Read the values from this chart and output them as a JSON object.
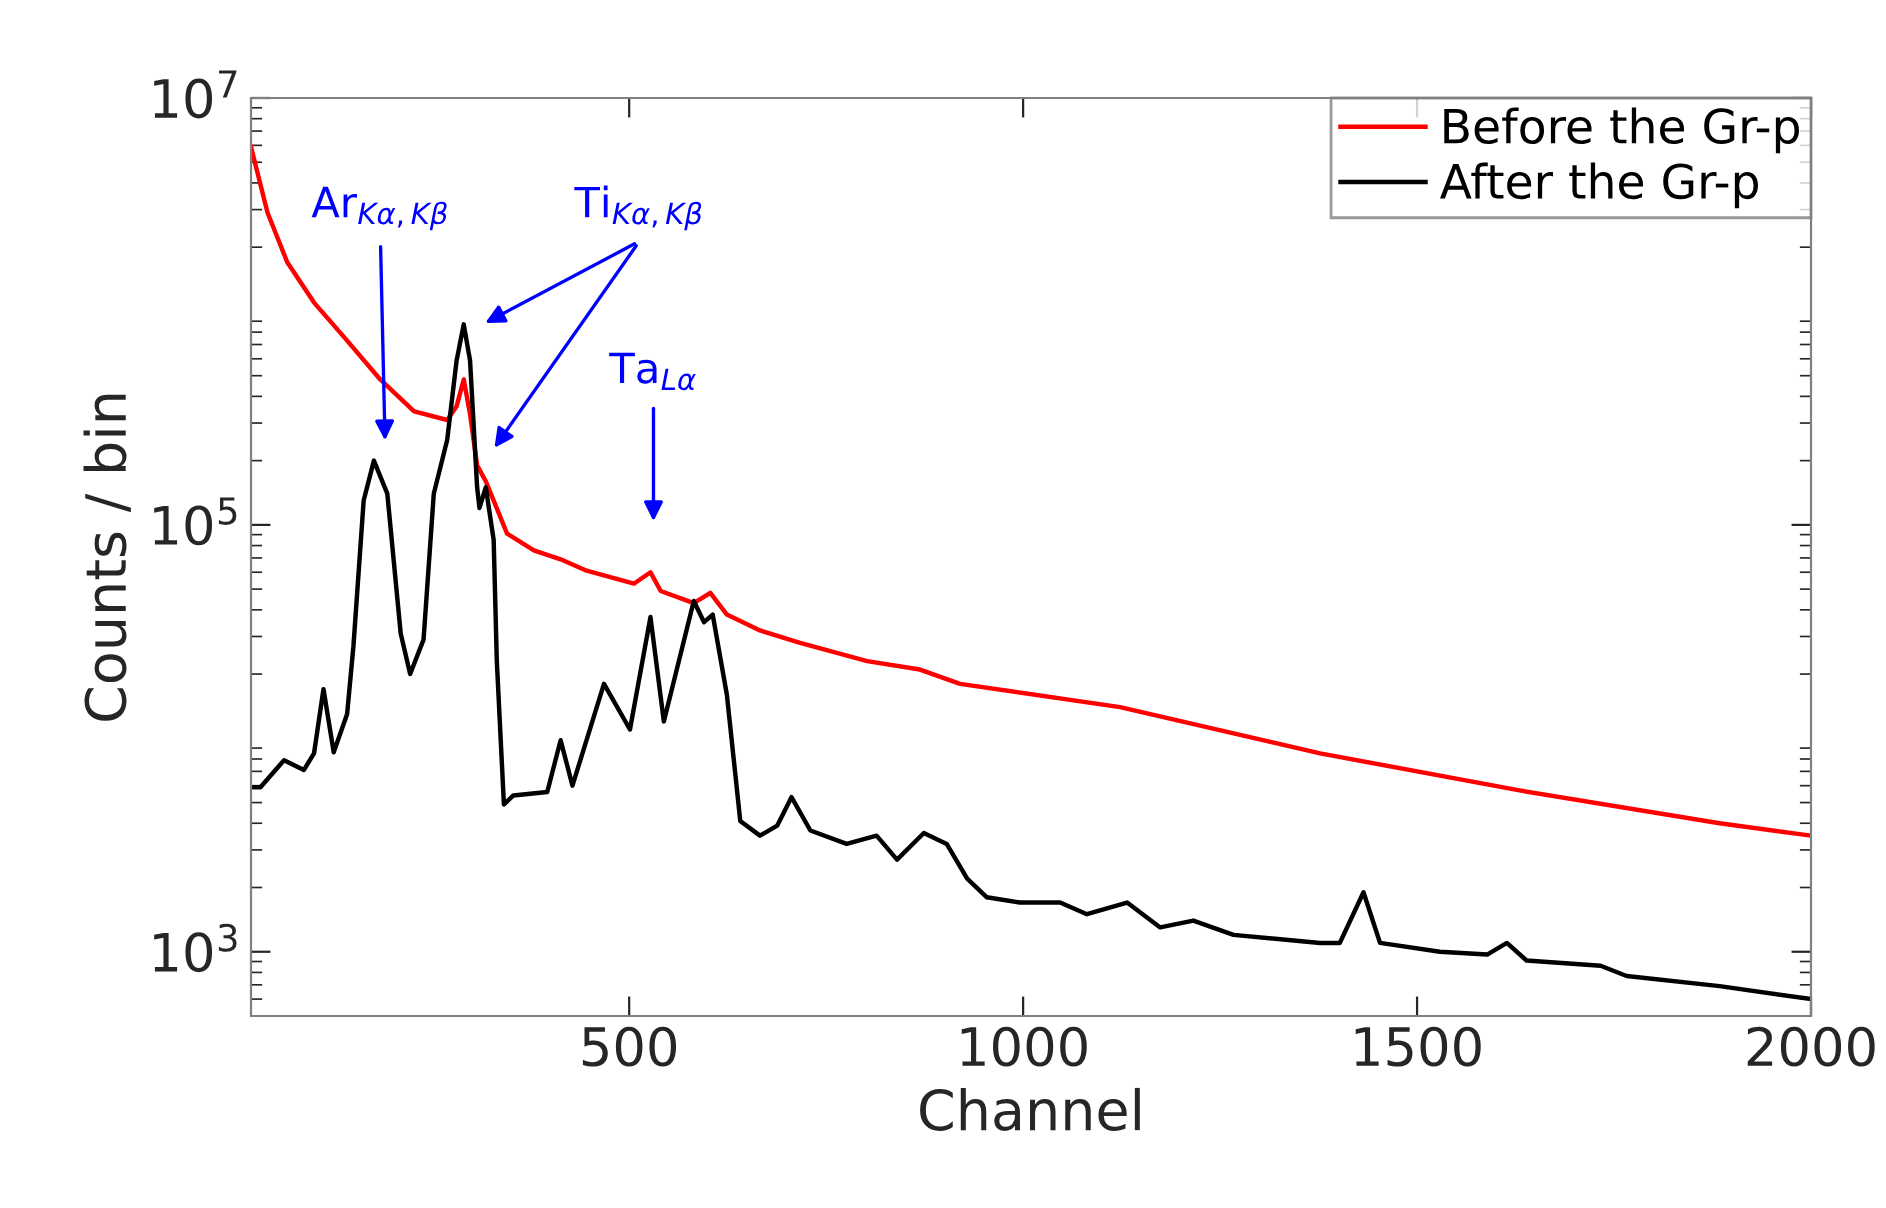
{
  "chart_data": {
    "type": "line",
    "xlabel": "Channel",
    "ylabel": "Counts / bin",
    "log": "y",
    "xlim": [
      20,
      2000
    ],
    "ylim": [
      500,
      10000000
    ],
    "xticks": [
      500,
      1000,
      1500,
      2000
    ],
    "yticks": [
      {
        "value": 1000,
        "label": "10$^{3}$"
      },
      {
        "value": 100000,
        "label": "10$^{5}$"
      },
      {
        "value": 10000000,
        "label": "10$^{7}$"
      }
    ],
    "grid": false,
    "legend": "top right",
    "line_style": "solid",
    "marker": "none",
    "series": [
      {
        "name": "Before the Gr-p",
        "color": "#ff0000",
        "x": [
          20,
          41,
          66,
          100,
          142,
          184,
          227,
          269,
          281,
          290,
          298,
          307,
          318,
          328,
          345,
          379,
          413,
          446,
          506,
          527,
          540,
          582,
          603,
          624,
          666,
          717,
          802,
          869,
          920,
          1123,
          1377,
          1630,
          1884,
          2000
        ],
        "values": [
          5900000,
          2900000,
          1700000,
          1100000,
          730000,
          480000,
          340000,
          310000,
          360000,
          480000,
          330000,
          190000,
          160000,
          130000,
          91000,
          76000,
          69000,
          61000,
          53000,
          60000,
          49000,
          43000,
          48000,
          38000,
          32000,
          28000,
          23000,
          21000,
          18000,
          14000,
          8500,
          5700,
          4000,
          3500
        ]
      },
      {
        "name": "After the Gr-p",
        "color": "#000000",
        "x": [
          20,
          32,
          62,
          87,
          100,
          112,
          125,
          142,
          150,
          163,
          176,
          193,
          210,
          222,
          239,
          252,
          269,
          281,
          290,
          298,
          307,
          310,
          318,
          328,
          332,
          341,
          353,
          396,
          413,
          428,
          468,
          501,
          527,
          544,
          582,
          595,
          606,
          624,
          641,
          666,
          688,
          706,
          730,
          776,
          814,
          840,
          874,
          903,
          929,
          954,
          996,
          1047,
          1081,
          1132,
          1174,
          1216,
          1267,
          1377,
          1402,
          1432,
          1453,
          1529,
          1589,
          1614,
          1639,
          1733,
          1766,
          1884,
          2000
        ],
        "values": [
          5900,
          5900,
          7900,
          7100,
          8500,
          17000,
          8600,
          13000,
          27000,
          130000,
          200000,
          140000,
          31000,
          20000,
          29000,
          140000,
          250000,
          590000,
          870000,
          590000,
          150000,
          120000,
          150000,
          85000,
          23000,
          4900,
          5400,
          5600,
          9800,
          6000,
          18000,
          11000,
          37000,
          12000,
          44000,
          35000,
          38000,
          16000,
          4100,
          3500,
          3900,
          5300,
          3700,
          3200,
          3500,
          2700,
          3600,
          3200,
          2200,
          1800,
          1700,
          1700,
          1500,
          1700,
          1300,
          1400,
          1200,
          1100,
          1100,
          1900,
          1100,
          1000,
          970,
          1100,
          910,
          860,
          770,
          690,
          600
        ]
      }
    ],
    "annotations": [
      "Ar$_{Kα,Kβ}$",
      "Ti$_{Kα,Kβ}$",
      "Ta$_{Lα}$"
    ]
  }
}
